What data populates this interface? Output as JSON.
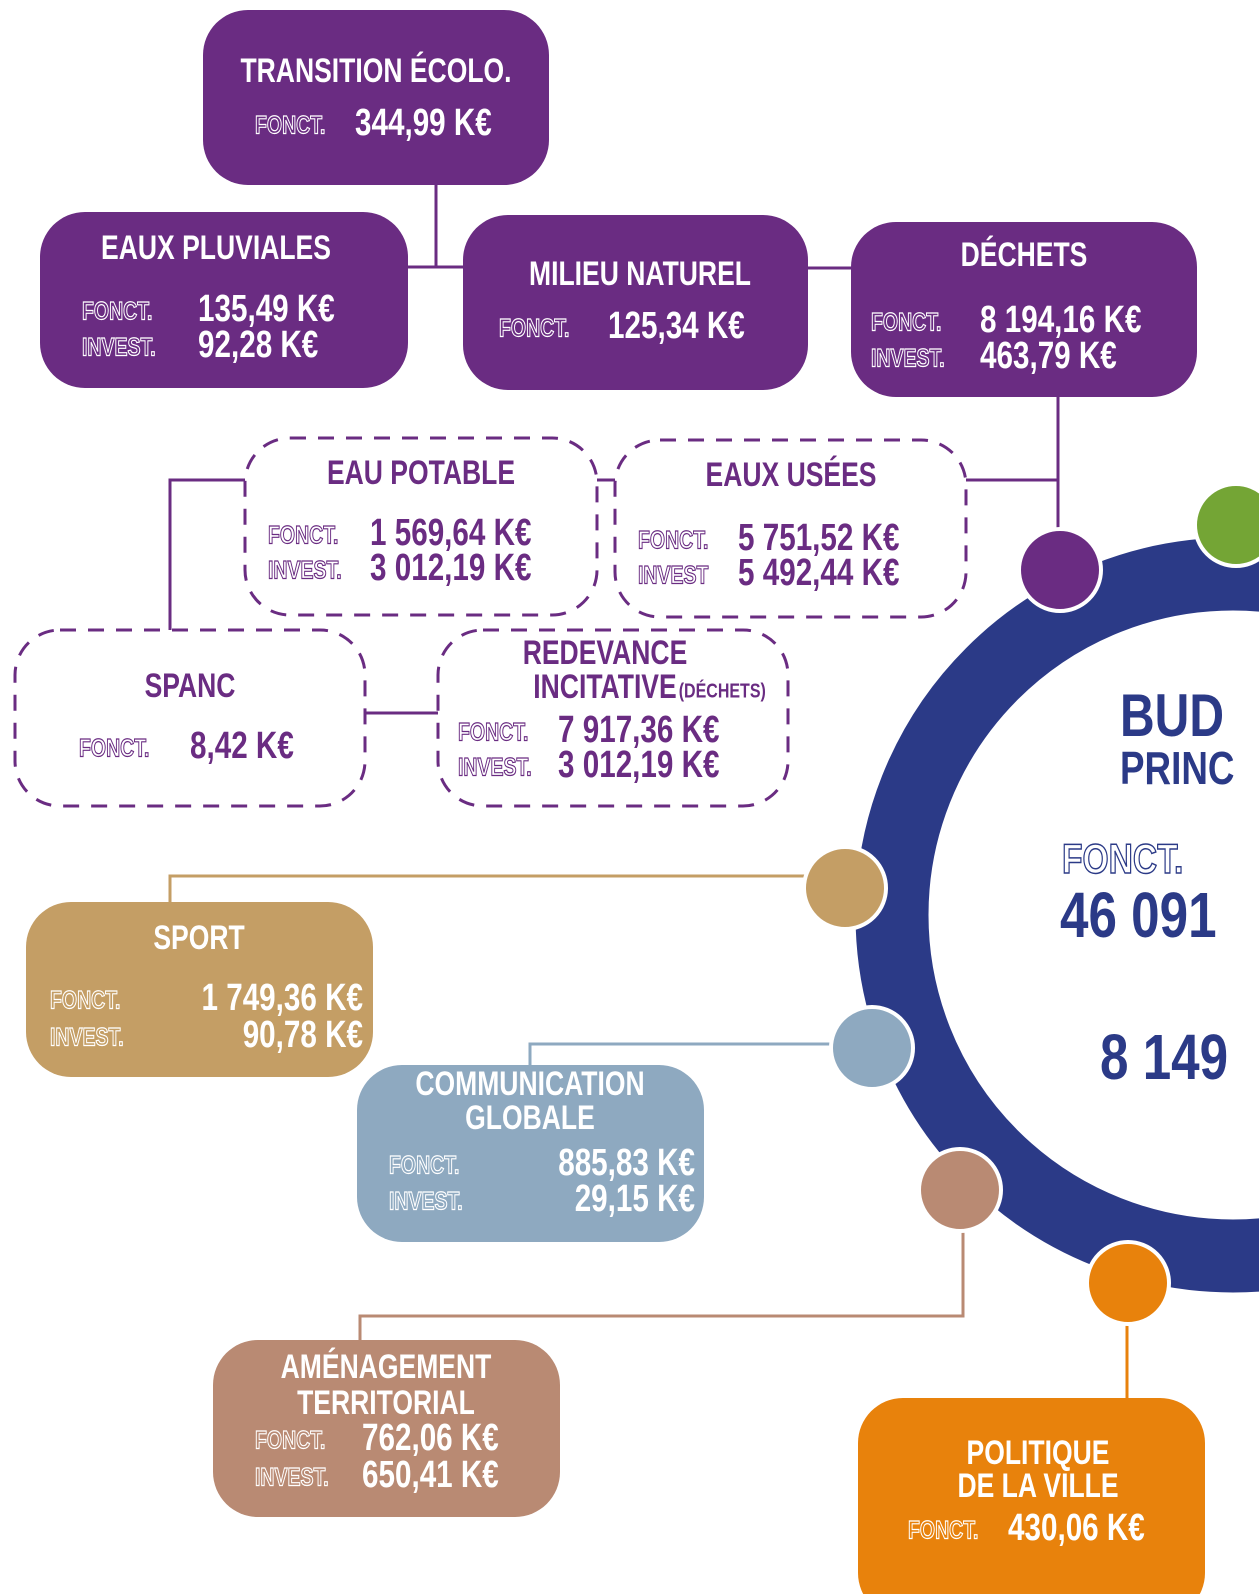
{
  "center": {
    "title": [
      "BUD",
      "PRINC"
    ],
    "label": "FONCT.",
    "values": [
      "46 091",
      "8 149"
    ]
  },
  "nodes": [
    {
      "title": [
        "TRANSITION ÉCOLO."
      ],
      "rows": [
        {
          "label": "FONCT.",
          "value": "344,99 K€"
        }
      ]
    },
    {
      "title": [
        "EAUX PLUVIALES"
      ],
      "rows": [
        {
          "label": "FONCT.",
          "value": "135,49 K€"
        },
        {
          "label": "INVEST.",
          "value": "92,28 K€"
        }
      ]
    },
    {
      "title": [
        "MILIEU NATUREL"
      ],
      "rows": [
        {
          "label": "FONCT.",
          "value": "125,34 K€"
        }
      ]
    },
    {
      "title": [
        "DÉCHETS"
      ],
      "rows": [
        {
          "label": "FONCT.",
          "value": "8 194,16 K€"
        },
        {
          "label": "INVEST.",
          "value": "463,79 K€"
        }
      ]
    },
    {
      "title": [
        "EAU POTABLE"
      ],
      "rows": [
        {
          "label": "FONCT.",
          "value": "1 569,64 K€"
        },
        {
          "label": "INVEST.",
          "value": "3 012,19 K€"
        }
      ]
    },
    {
      "title": [
        "EAUX USÉES"
      ],
      "rows": [
        {
          "label": "FONCT.",
          "value": "5 751,52 K€"
        },
        {
          "label": "INVEST",
          "value": "5 492,44 K€"
        }
      ]
    },
    {
      "title": [
        "SPANC"
      ],
      "rows": [
        {
          "label": "FONCT.",
          "value": "8,42 K€"
        }
      ]
    },
    {
      "title": [
        "REDEVANCE",
        "INCITATIVE"
      ],
      "title_suffix": "(DÉCHETS)",
      "rows": [
        {
          "label": "FONCT.",
          "value": "7 917,36 K€"
        },
        {
          "label": "INVEST.",
          "value": "3 012,19 K€"
        }
      ]
    },
    {
      "title": [
        "SPORT"
      ],
      "rows": [
        {
          "label": "FONCT.",
          "value": "1 749,36 K€"
        },
        {
          "label": "INVEST.",
          "value": "90,78 K€"
        }
      ]
    },
    {
      "title": [
        "COMMUNICATION",
        "GLOBALE"
      ],
      "rows": [
        {
          "label": "FONCT.",
          "value": "885,83 K€"
        },
        {
          "label": "INVEST.",
          "value": "29,15 K€"
        }
      ]
    },
    {
      "title": [
        "AMÉNAGEMENT",
        "TERRITORIAL"
      ],
      "rows": [
        {
          "label": "FONCT.",
          "value": "762,06 K€"
        },
        {
          "label": "INVEST.",
          "value": "650,41 K€"
        }
      ]
    },
    {
      "title": [
        "POLITIQUE",
        "DE LA VILLE"
      ],
      "rows": [
        {
          "label": "FONCT.",
          "value": "430,06 K€"
        }
      ]
    }
  ]
}
